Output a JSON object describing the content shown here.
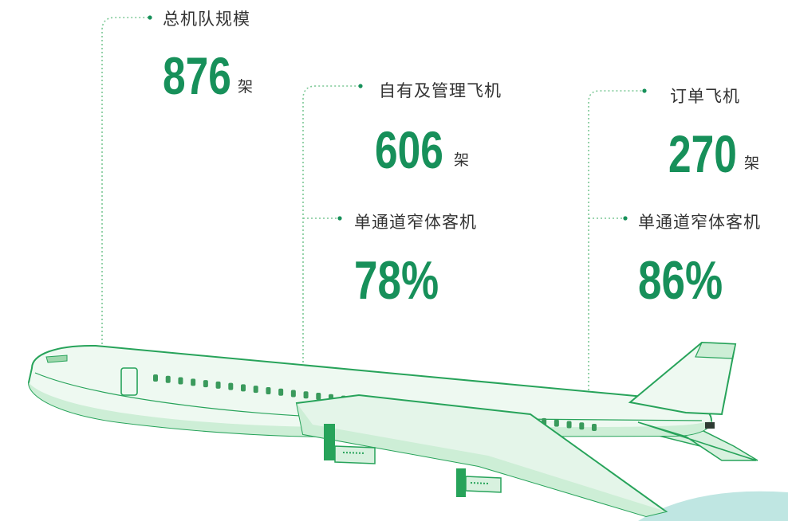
{
  "fleet": {
    "label": "总机队规模",
    "value": "876",
    "unit": "架"
  },
  "owned": {
    "label": "自有及管理飞机",
    "value": "606",
    "unit": "架",
    "sub_label": "单通道窄体客机",
    "sub_value": "78%"
  },
  "ordered": {
    "label": "订单飞机",
    "value": "270",
    "unit": "架",
    "sub_label": "单通道窄体客机",
    "sub_value": "86%"
  },
  "colors": {
    "accent": "#17905a",
    "plane_fill": "#eef9f1",
    "plane_stroke": "#27a35a",
    "dotted": "#7cc896",
    "text": "#333333"
  }
}
